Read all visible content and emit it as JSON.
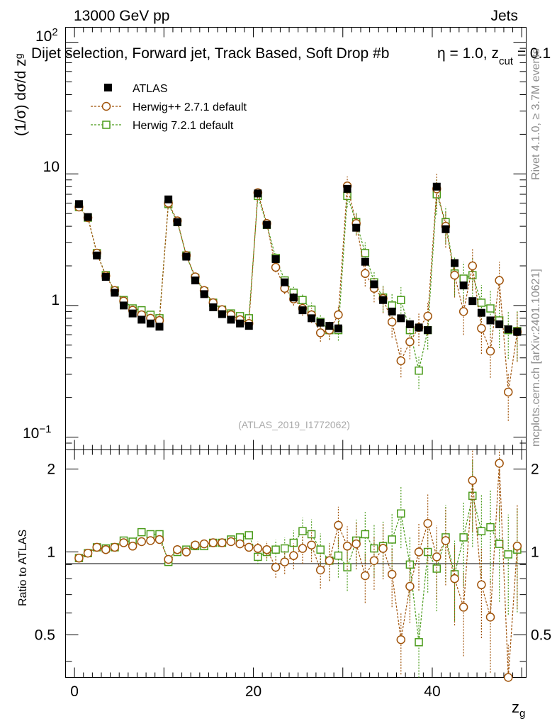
{
  "header": {
    "energy": "13000 GeV pp",
    "category": "Jets"
  },
  "chart_data": {
    "type": "scatter",
    "title": "Dijet selection, Forward jet, Track Based, Soft Drop #b",
    "title_tail": "η = 1.0, z",
    "title_cut_sub": "cut",
    "title_end": " = 0.1",
    "xlabel": "z",
    "xlabel_sub": "g",
    "ylabel_main": "(1/σ) dσ/d z",
    "ylabel_sub": "g",
    "ratio_ylabel": "Ratio to ATLAS",
    "ylim": [
      0.08,
      130
    ],
    "ratio_ylim": [
      0.35,
      2.35
    ],
    "xlim": [
      -1,
      50.5
    ],
    "yscale": "log",
    "x_ticks": [
      "0",
      "20",
      "40"
    ],
    "y_ticks": {
      "exp_base": "10",
      "exp_neg": "−1",
      "exp_pos": "2",
      "one": "1",
      "ten": "10"
    },
    "ratio_ticks": [
      "0.5",
      "1",
      "2"
    ],
    "watermark": "(ATLAS_2019_I1772062)",
    "side_rivet": "Rivet 4.1.0, ≥ 3.7M events",
    "side_mcplots": "mcplots.cern.ch [arXiv:2401.10621]",
    "legend": {
      "atlas": "ATLAS",
      "herwigpp": "Herwig++ 2.7.1 default",
      "herwig7": "Herwig 7.2.1 default"
    },
    "colors": {
      "atlas": "#000000",
      "herwigpp": "#a0530a",
      "herwig7": "#4a9b1a"
    },
    "bins": [
      0.5,
      1.5,
      2.5,
      3.5,
      4.5,
      5.5,
      6.5,
      7.5,
      8.5,
      9.5,
      10.5,
      11.5,
      12.5,
      13.5,
      14.5,
      15.5,
      16.5,
      17.5,
      18.5,
      19.5,
      20.5,
      21.5,
      22.5,
      23.5,
      24.5,
      25.5,
      26.5,
      27.5,
      28.5,
      29.5,
      30.5,
      31.5,
      32.5,
      33.5,
      34.5,
      35.5,
      36.5,
      37.5,
      38.5,
      39.5,
      40.5,
      41.5,
      42.5,
      43.5,
      44.5,
      45.5,
      46.5,
      47.5,
      48.5,
      49.5
    ],
    "series": [
      {
        "name": "ATLAS",
        "values": [
          5.9,
          4.7,
          2.4,
          1.65,
          1.25,
          1.0,
          0.87,
          0.78,
          0.73,
          0.69,
          6.4,
          4.3,
          2.35,
          1.55,
          1.22,
          0.97,
          0.86,
          0.78,
          0.73,
          0.7,
          7.1,
          4.1,
          2.25,
          1.5,
          1.15,
          0.92,
          0.8,
          0.74,
          0.7,
          0.67,
          7.7,
          3.9,
          2.15,
          1.45,
          1.1,
          0.9,
          0.8,
          0.72,
          0.68,
          0.65,
          8.0,
          3.8,
          2.1,
          1.42,
          1.08,
          0.88,
          0.77,
          0.72,
          0.66,
          0.63
        ]
      },
      {
        "name": "Herwig++ 2.7.1 default",
        "values": [
          5.6,
          4.65,
          2.5,
          1.68,
          1.3,
          1.08,
          0.92,
          0.85,
          0.8,
          0.77,
          6.0,
          4.4,
          2.4,
          1.65,
          1.3,
          1.05,
          0.93,
          0.85,
          0.78,
          0.73,
          7.2,
          4.2,
          1.95,
          1.35,
          1.12,
          0.95,
          0.85,
          0.62,
          0.65,
          0.85,
          8.1,
          4.2,
          1.75,
          1.35,
          1.13,
          0.75,
          0.38,
          0.53,
          0.68,
          0.83,
          7.7,
          4.0,
          1.7,
          0.9,
          2.0,
          0.67,
          0.45,
          1.55,
          0.22,
          0.63
        ]
      },
      {
        "name": "Herwig 7.2.1 default",
        "values": [
          5.6,
          4.65,
          2.5,
          1.7,
          1.3,
          1.1,
          0.95,
          0.92,
          0.85,
          0.8,
          5.9,
          4.3,
          2.4,
          1.62,
          1.28,
          1.05,
          0.93,
          0.87,
          0.83,
          0.8,
          6.8,
          4.1,
          2.3,
          1.55,
          1.25,
          1.1,
          0.93,
          0.75,
          0.65,
          0.65,
          6.8,
          4.3,
          2.5,
          1.5,
          1.15,
          1.0,
          1.1,
          0.65,
          0.32,
          0.65,
          7.0,
          4.3,
          1.75,
          1.6,
          1.7,
          1.05,
          0.95,
          0.77,
          0.65,
          0.64
        ]
      }
    ],
    "ratio_series": [
      {
        "name": "Herwig++ 2.7.1 default",
        "values": [
          0.95,
          0.99,
          1.04,
          1.02,
          1.04,
          1.08,
          1.05,
          1.09,
          1.1,
          1.11,
          0.94,
          1.02,
          1.0,
          1.06,
          1.07,
          1.08,
          1.08,
          1.09,
          1.07,
          1.04,
          1.03,
          1.02,
          0.88,
          0.92,
          0.97,
          1.03,
          1.06,
          0.86,
          0.93,
          1.25,
          1.05,
          1.07,
          0.82,
          0.93,
          1.03,
          0.83,
          0.48,
          0.75,
          1.0,
          1.27,
          0.96,
          1.1,
          0.8,
          0.63,
          1.82,
          0.76,
          0.58,
          2.1,
          0.33,
          1.05
        ]
      },
      {
        "name": "Herwig 7.2.1 default",
        "values": [
          0.95,
          0.99,
          1.04,
          1.03,
          1.04,
          1.1,
          1.09,
          1.18,
          1.16,
          1.16,
          0.92,
          1.0,
          1.02,
          1.05,
          1.05,
          1.08,
          1.08,
          1.11,
          1.13,
          1.15,
          0.96,
          1.0,
          1.02,
          1.03,
          1.08,
          1.19,
          1.16,
          1.02,
          0.93,
          0.97,
          0.88,
          1.1,
          1.16,
          1.03,
          1.05,
          1.11,
          1.38,
          0.9,
          0.47,
          1.0,
          0.87,
          1.13,
          0.83,
          1.13,
          1.6,
          1.19,
          1.23,
          1.07,
          0.98,
          1.02
        ]
      }
    ]
  }
}
